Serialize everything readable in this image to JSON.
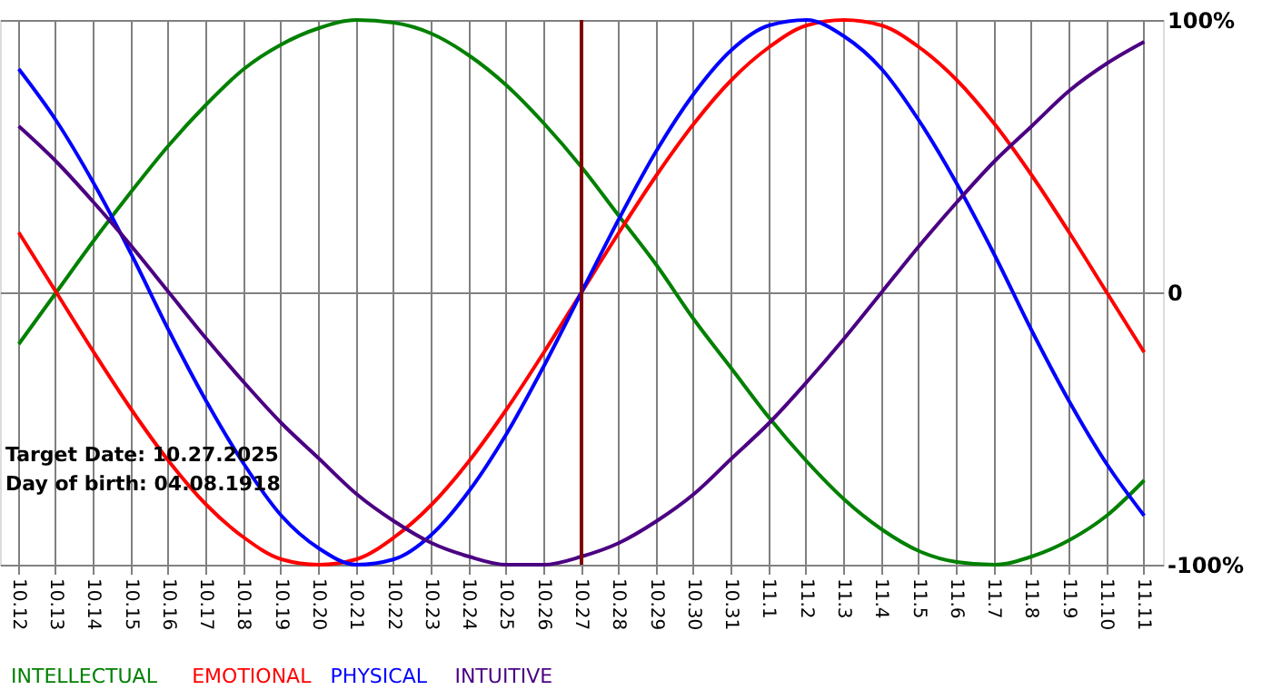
{
  "chart_data": {
    "type": "line",
    "categories": [
      "10.12",
      "10.13",
      "10.14",
      "10.15",
      "10.16",
      "10.17",
      "10.18",
      "10.19",
      "10.20",
      "10.21",
      "10.22",
      "10.23",
      "10.24",
      "10.25",
      "10.26",
      "10.27",
      "10.28",
      "10.29",
      "10.30",
      "10.31",
      "11.1",
      "11.2",
      "11.3",
      "11.4",
      "11.5",
      "11.6",
      "11.7",
      "11.8",
      "11.9",
      "11.10",
      "11.11"
    ],
    "series": [
      {
        "name": "INTELLECTUAL",
        "color": "#008000",
        "values": [
          -19,
          0,
          19,
          37,
          54,
          69,
          82,
          91,
          97,
          100,
          99,
          95,
          87,
          76,
          62,
          46,
          28,
          10,
          -10,
          -28,
          -46,
          -62,
          -76,
          -87,
          -95,
          -99,
          -100,
          -97,
          -91,
          -82,
          -69
        ]
      },
      {
        "name": "EMOTIONAL",
        "color": "#ff0000",
        "values": [
          22,
          0,
          -22,
          -43,
          -62,
          -78,
          -90,
          -98,
          -100,
          -98,
          -90,
          -78,
          -62,
          -43,
          -22,
          0,
          22,
          43,
          62,
          78,
          90,
          98,
          100,
          98,
          90,
          78,
          62,
          43,
          22,
          0,
          -22
        ]
      },
      {
        "name": "PHYSICAL",
        "color": "#0000ff",
        "values": [
          82,
          63,
          40,
          14,
          -14,
          -40,
          -63,
          -82,
          -94,
          -100,
          -98,
          -89,
          -73,
          -52,
          -27,
          0,
          27,
          52,
          73,
          89,
          98,
          100,
          94,
          82,
          63,
          40,
          14,
          -14,
          -40,
          -63,
          -82
        ]
      },
      {
        "name": "INTUITIVE",
        "color": "#4b0082",
        "values": [
          61,
          48,
          33,
          17,
          0,
          -17,
          -33,
          -48,
          -61,
          -74,
          -84,
          -92,
          -97,
          -100,
          -100,
          -97,
          -92,
          -84,
          -74,
          -61,
          -48,
          -33,
          -17,
          0,
          17,
          33,
          48,
          61,
          74,
          84,
          92
        ]
      }
    ],
    "ylim": [
      -100,
      100
    ],
    "yticks": [
      {
        "value": 100,
        "label": "100%"
      },
      0,
      {
        "value": -100,
        "label": "-100%"
      }
    ],
    "ref_lines": [
      {
        "axis": "x",
        "value": "10.27",
        "color": "#800000"
      }
    ],
    "annotations": [
      "Target Date: 10.27.2025",
      "Day of birth: 04.08.1918"
    ],
    "grid": true,
    "legend": "bottom left",
    "line_style": "solid",
    "marker": "none"
  }
}
